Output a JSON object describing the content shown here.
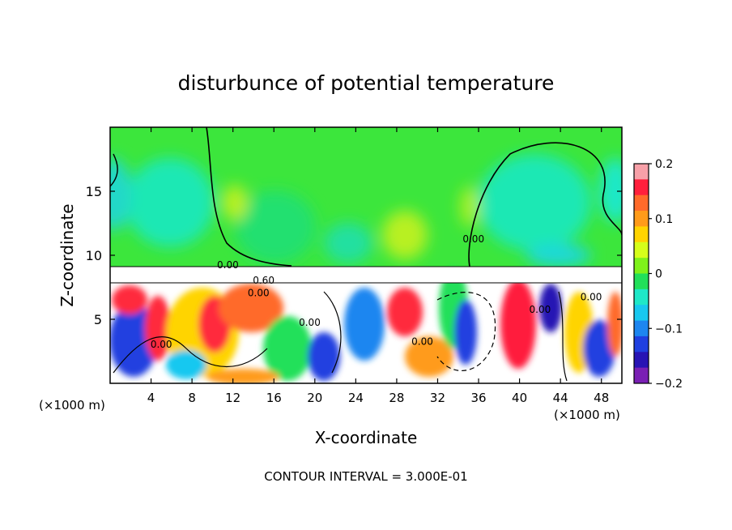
{
  "chart_data": {
    "type": "heatmap",
    "title": "disturbunce of potential temperature",
    "xlabel": "X-coordinate",
    "ylabel": "Z-coordinate",
    "x_unit_left": "(×1000 m)",
    "x_unit_right": "(×1000 m)",
    "footer": "CONTOUR INTERVAL = 3.000E-01",
    "xlim": [
      0,
      50
    ],
    "ylim": [
      0,
      20
    ],
    "x_ticks": [
      4,
      8,
      12,
      16,
      20,
      24,
      28,
      32,
      36,
      40,
      44,
      48
    ],
    "x_tick_labels": [
      "4",
      "8",
      "12",
      "16",
      "20",
      "24",
      "28",
      "32",
      "36",
      "40",
      "44",
      "48"
    ],
    "y_ticks": [
      5,
      10,
      15
    ],
    "y_tick_labels": [
      "5",
      "10",
      "15"
    ],
    "colorbar": {
      "min": -0.2,
      "max": 0.2,
      "ticks": [
        0.2,
        0.1,
        0,
        -0.1,
        -0.2
      ],
      "tick_labels": [
        "0.2",
        "0.1",
        "0",
        "−0.1",
        "−0.2"
      ],
      "colors": [
        "#f7a0a8",
        "#ff1f3c",
        "#ff6a2a",
        "#ff9b1a",
        "#ffd400",
        "#d6ff1a",
        "#7ff21a",
        "#22e05a",
        "#1fe8c8",
        "#18c8f0",
        "#1d86f0",
        "#2040e0",
        "#2814b4",
        "#7a20b4"
      ]
    },
    "contour_labels": [
      {
        "text": "0.00",
        "x": 11.5,
        "z": 9.0
      },
      {
        "text": "0.60",
        "x": 15.0,
        "z": 7.8
      },
      {
        "text": "0.00",
        "x": 14.5,
        "z": 6.8
      },
      {
        "text": "0.00",
        "x": 5.0,
        "z": 2.8
      },
      {
        "text": "0.00",
        "x": 19.5,
        "z": 4.5
      },
      {
        "text": "0.00",
        "x": 30.5,
        "z": 3.0
      },
      {
        "text": "0.00",
        "x": 35.5,
        "z": 11.0
      },
      {
        "text": "0.00",
        "x": 42.0,
        "z": 5.5
      },
      {
        "text": "0.00",
        "x": 47.0,
        "z": 6.5
      }
    ]
  },
  "colors": {
    "upper_field": "#3ce63c",
    "lower_field": "#ffffff"
  }
}
